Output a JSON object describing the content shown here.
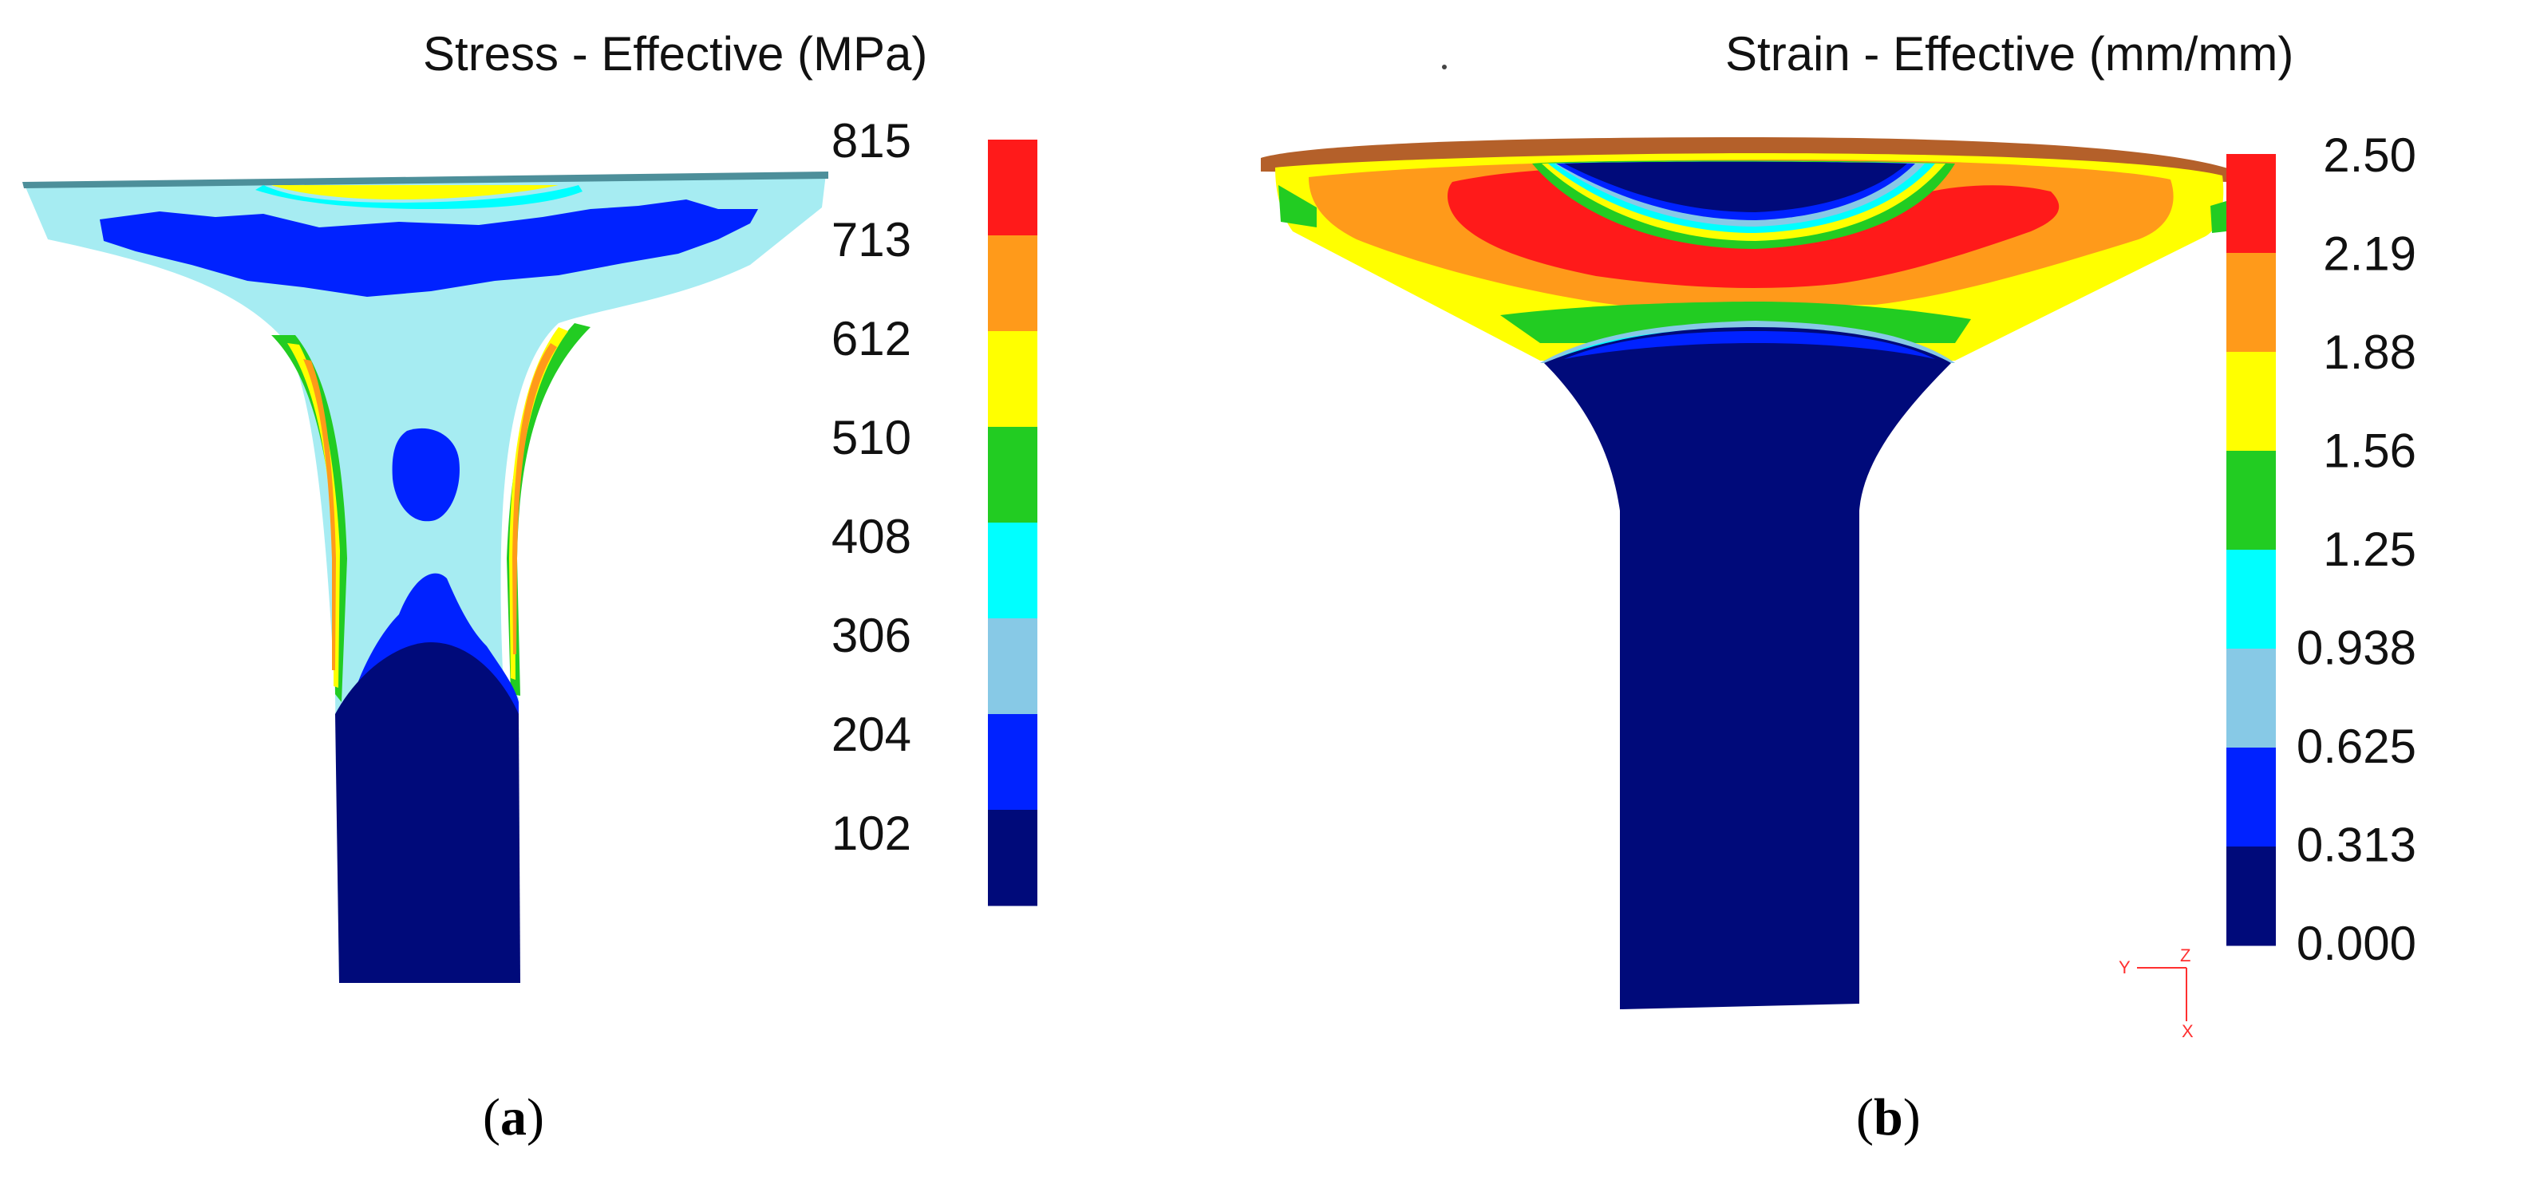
{
  "panel_a": {
    "title": "Stress - Effective (MPa)",
    "legend_ticks": [
      "815",
      "713",
      "612",
      "510",
      "408",
      "306",
      "204",
      "102"
    ],
    "legend_colors": [
      "#ff1a1a",
      "#ff9a1a",
      "#ffff00",
      "#22cc22",
      "#00ffff",
      "#87c9e6",
      "#0022ff",
      "#000a7a"
    ],
    "caption_open": "(",
    "caption_letter": "a",
    "caption_close": ")"
  },
  "panel_b": {
    "title": "Strain - Effective (mm/mm)",
    "legend_ticks": [
      "2.50",
      "2.19",
      "1.88",
      "1.56",
      "1.25",
      "0.938",
      "0.625",
      "0.313",
      "0.000"
    ],
    "legend_colors": [
      "#ff1a1a",
      "#ff9a1a",
      "#ffff00",
      "#22cc22",
      "#00ffff",
      "#87c9e6",
      "#0022ff",
      "#000a7a"
    ],
    "caption_open": "(",
    "caption_letter": "b",
    "caption_close": ")",
    "axis_triad": {
      "y_label": "Y",
      "z_label": "Z",
      "x_label": "X"
    }
  },
  "colors": {
    "red": "#ff1a1a",
    "orange": "#ff9a1a",
    "yellow": "#ffff00",
    "green": "#22cc22",
    "cyan": "#00ffff",
    "light_blue": "#a6ecf2",
    "blue": "#0022ff",
    "navy": "#000a7a"
  }
}
